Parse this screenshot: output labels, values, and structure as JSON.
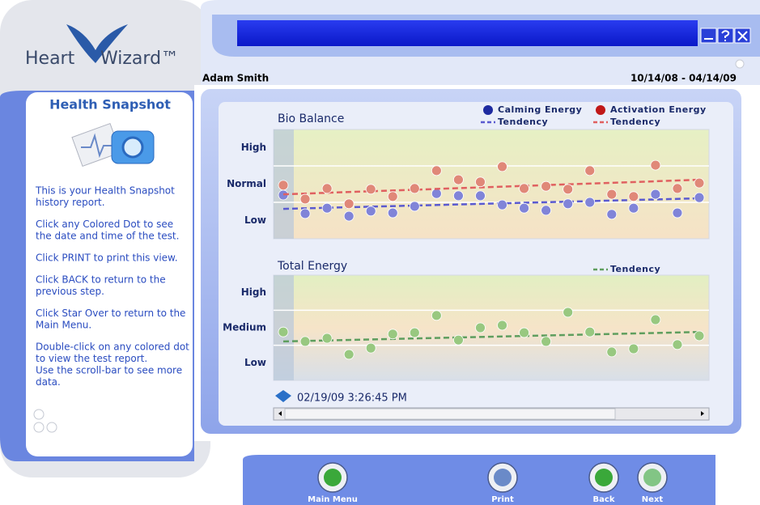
{
  "header": {
    "logo_first": "Heart",
    "logo_second": "Wizard™",
    "patient": "Adam Smith",
    "date_range": "10/14/08 - 04/14/09"
  },
  "sidebar": {
    "title": "Health Snapshot",
    "paragraphs": [
      [
        "This is your Health Snapshot",
        "history report."
      ],
      [
        "Click any Colored Dot to see",
        "the date and time of the test."
      ],
      [
        "Click PRINT to print this view."
      ],
      [
        "Click BACK to return to the",
        "previous step."
      ],
      [
        "Click Star Over to return to the",
        "Main Menu."
      ],
      [
        "Double-click on any colored dot",
        "to view the test report.",
        "Use the scroll-bar to see more",
        "data."
      ]
    ]
  },
  "chart_data": [
    {
      "type": "scatter",
      "title": "Bio Balance",
      "categories": [
        null,
        null,
        null,
        null,
        null,
        null,
        null,
        null,
        null,
        null,
        null,
        null,
        null,
        null,
        null,
        null,
        null,
        null,
        null,
        null
      ],
      "series": [
        {
          "name": "Calming Energy",
          "color": "#8084d8",
          "legend_color": "#1e2aa0",
          "values": [
            1.2,
            0.69,
            0.84,
            0.62,
            0.76,
            0.71,
            0.89,
            1.24,
            1.18,
            1.18,
            0.93,
            0.84,
            0.78,
            0.96,
            1.0,
            0.67,
            0.84,
            1.22,
            0.71,
            1.13
          ],
          "trend": {
            "name": "Tendency",
            "color": "#5a5ad0",
            "values": [
              0.82,
              1.11
            ]
          }
        },
        {
          "name": "Activation Energy",
          "color": "#e08878",
          "legend_color": "#c01818",
          "values": [
            1.47,
            1.09,
            1.38,
            0.96,
            1.36,
            1.16,
            1.38,
            1.87,
            1.62,
            1.56,
            1.98,
            1.38,
            1.44,
            1.36,
            1.87,
            1.22,
            1.16,
            2.02,
            1.38,
            1.53
          ],
          "trend": {
            "name": "Tendency",
            "color": "#e06060",
            "values": [
              1.22,
              1.62
            ]
          }
        }
      ],
      "ylim": [
        0,
        3
      ],
      "yticks": [
        {
          "value": 2.5,
          "label": "High"
        },
        {
          "value": 1.5,
          "label": "Normal"
        },
        {
          "value": 0.5,
          "label": "Low"
        }
      ],
      "ygrid": [
        1,
        2
      ]
    },
    {
      "type": "scatter",
      "title": "Total Energy",
      "categories": [
        null,
        null,
        null,
        null,
        null,
        null,
        null,
        null,
        null,
        null,
        null,
        null,
        null,
        null,
        null,
        null,
        null,
        null,
        null,
        null
      ],
      "series": [
        {
          "color": "#98c880",
          "values": [
            1.38,
            1.11,
            1.2,
            0.74,
            0.92,
            1.32,
            1.36,
            1.85,
            1.15,
            1.5,
            1.57,
            1.36,
            1.11,
            1.94,
            1.38,
            0.81,
            0.9,
            1.73,
            1.02,
            1.27
          ],
          "trend": {
            "name": "Tendency",
            "color": "#5e9e5e",
            "values": [
              1.11,
              1.38
            ]
          }
        }
      ],
      "ylim": [
        0,
        3
      ],
      "yticks": [
        {
          "value": 2.5,
          "label": "High"
        },
        {
          "value": 1.5,
          "label": "Medium"
        },
        {
          "value": 0.5,
          "label": "Low"
        }
      ],
      "ygrid": [
        1,
        2
      ]
    }
  ],
  "selected_test": "02/19/09 3:26:45 PM",
  "buttons": [
    "Main Menu",
    "Print",
    "Back",
    "Next"
  ]
}
